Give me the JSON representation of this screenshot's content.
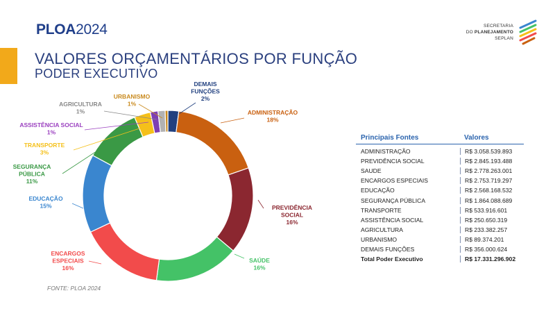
{
  "header": {
    "brand_bold": "PLOA",
    "brand_year": "2024",
    "logo_line1": "SECRETARIA",
    "logo_line2_a": "DO ",
    "logo_line2_b": "PLANEJAMENTO",
    "logo_line3": "SEPLAN"
  },
  "title": "VALORES ORÇAMENTÁRIOS POR FUNÇÃO",
  "subtitle": "PODER EXECUTIVO",
  "source": "FONTE: PLOA 2024",
  "colors": {
    "accent": "#f2a91a",
    "brand": "#1f3e8a"
  },
  "chart_data": {
    "type": "pie",
    "variant": "donut",
    "start": "top, clockwise",
    "slices": [
      {
        "name": "DEMAIS FUNÇÕES",
        "percent_label": "2%",
        "value": 356000624,
        "color": "#21407f"
      },
      {
        "name": "ADMINISTRAÇÃO",
        "percent_label": "18%",
        "value": 3058539893,
        "color": "#c96010"
      },
      {
        "name": "PREVIDÊNCIA SOCIAL",
        "percent_label": "16%",
        "value": 2845193488,
        "color": "#8b2730"
      },
      {
        "name": "SAÚDE",
        "percent_label": "16%",
        "value": 2778263001,
        "color": "#44c267"
      },
      {
        "name": "ENCARGOS ESPECIAIS",
        "percent_label": "16%",
        "value": 2753719297,
        "color": "#f24b4b"
      },
      {
        "name": "EDUCAÇÃO",
        "percent_label": "15%",
        "value": 2568168532,
        "color": "#3a86cf"
      },
      {
        "name": "SEGURANÇA PÚBLICA",
        "percent_label": "11%",
        "value": 1864088689,
        "color": "#3a9945"
      },
      {
        "name": "TRANSPORTE",
        "percent_label": "3%",
        "value": 533916601,
        "color": "#f5c01a"
      },
      {
        "name": "ASSISTÊNCIA SOCIAL",
        "percent_label": "1%",
        "value": 250650319,
        "color": "#7d3fb3"
      },
      {
        "name": "AGRICULTURA",
        "percent_label": "1%",
        "value": 233382257,
        "color": "#b2b2b2"
      },
      {
        "name": "URBANISMO",
        "percent_label": "1%",
        "value": 89374201,
        "color": "#c98a1e"
      }
    ]
  },
  "labels": [
    {
      "lines": [
        "DEMAIS",
        "FUNÇÕES"
      ],
      "pct": "2%",
      "color": "#21407f",
      "anchor": "middle"
    },
    {
      "lines": [
        "ADMINISTRAÇÃO"
      ],
      "pct": "18%",
      "color": "#c96010",
      "anchor": "middle"
    },
    {
      "lines": [
        "PREVIDÊNCIA",
        "SOCIAL"
      ],
      "pct": "16%",
      "color": "#8b2730",
      "anchor": "middle"
    },
    {
      "lines": [
        "SAÚDE"
      ],
      "pct": "16%",
      "color": "#44c267",
      "anchor": "middle"
    },
    {
      "lines": [
        "ENCARGOS",
        "ESPECIAIS"
      ],
      "pct": "16%",
      "color": "#f24b4b",
      "anchor": "middle"
    },
    {
      "lines": [
        "EDUCAÇÃO"
      ],
      "pct": "15%",
      "color": "#3a86cf",
      "anchor": "middle"
    },
    {
      "lines": [
        "SEGURANÇA",
        "PÚBLICA"
      ],
      "pct": "11%",
      "color": "#3a9945",
      "anchor": "middle"
    },
    {
      "lines": [
        "TRANSPORTE"
      ],
      "pct": "3%",
      "color": "#f5c01a",
      "anchor": "middle"
    },
    {
      "lines": [
        "ASSISTÊNCIA SOCIAL"
      ],
      "pct": "1%",
      "color": "#9a3fbf",
      "anchor": "middle"
    },
    {
      "lines": [
        "AGRICULTURA"
      ],
      "pct": "1%",
      "color": "#888888",
      "anchor": "middle"
    },
    {
      "lines": [
        "URBANISMO"
      ],
      "pct": "1%",
      "color": "#c98a1e",
      "anchor": "middle"
    }
  ],
  "table": {
    "col1": "Principais Fontes",
    "col2": "Valores",
    "rows": [
      {
        "name": "ADMINISTRAÇÃO",
        "value": "R$ 3.058.539.893"
      },
      {
        "name": "PREVIDÊNCIA SOCIAL",
        "value": "R$ 2.845.193.488"
      },
      {
        "name": "SAUDE",
        "value": "R$ 2.778.263.001"
      },
      {
        "name": "ENCARGOS ESPECIAIS",
        "value": "R$ 2.753.719.297"
      },
      {
        "name": "EDUCAÇÃO",
        "value": "R$ 2.568.168.532"
      },
      {
        "name": "SEGURANÇA PÚBLICA",
        "value": "R$ 1.864.088.689"
      },
      {
        "name": "TRANSPORTE",
        "value": "R$ 533.916.601"
      },
      {
        "name": "ASSISTÊNCIA SOCIAL",
        "value": "R$ 250.650.319"
      },
      {
        "name": "AGRICULTURA",
        "value": "R$ 233.382.257"
      },
      {
        "name": "URBANISMO",
        "value": "R$ 89.374.201"
      },
      {
        "name": "DEMAIS FUNÇÕES",
        "value": "R$ 356.000.624"
      }
    ],
    "total": {
      "name": "Total Poder Executivo",
      "value": "R$ 17.331.296.902"
    }
  }
}
